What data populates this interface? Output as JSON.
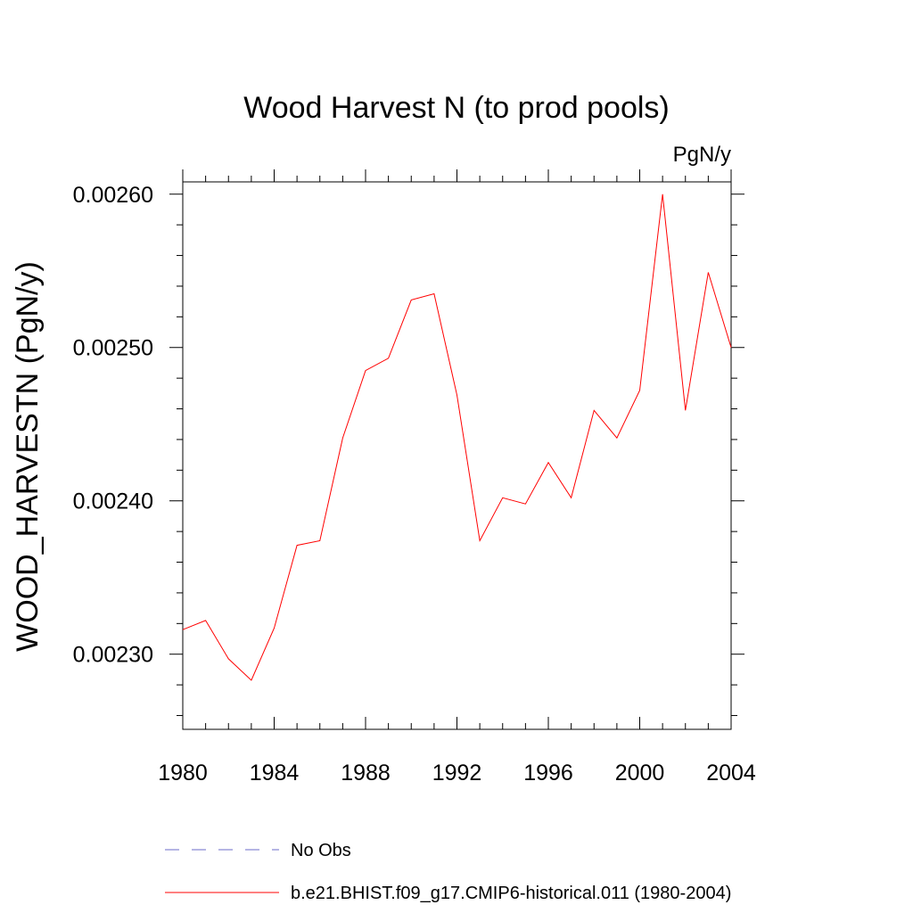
{
  "chart_data": {
    "type": "line",
    "title": "Wood Harvest N (to prod pools)",
    "units_label": "PgN/y",
    "ylabel": "WOOD_HARVESTN  (PgN/y)",
    "xlabel": "",
    "xlim": [
      1980,
      2004
    ],
    "ylim": [
      0.002251,
      0.002608
    ],
    "x_ticks": [
      1980,
      1984,
      1988,
      1992,
      1996,
      2000,
      2004
    ],
    "x_tick_labels": [
      "1980",
      "1984",
      "1988",
      "1992",
      "1996",
      "2000",
      "2004"
    ],
    "y_ticks": [
      0.0023,
      0.0024,
      0.0025,
      0.0026
    ],
    "y_tick_labels": [
      "0.00230",
      "0.00240",
      "0.00250",
      "0.00260"
    ],
    "grid": false,
    "legend_position": "bottom",
    "series": [
      {
        "name": "No Obs",
        "color": "#6b6bc8",
        "dash": "dashed",
        "x": [],
        "y": []
      },
      {
        "name": "b.e21.BHIST.f09_g17.CMIP6-historical.011 (1980-2004)",
        "color": "#ff0000",
        "dash": "solid",
        "x": [
          1980,
          1981,
          1982,
          1983,
          1984,
          1985,
          1986,
          1987,
          1988,
          1989,
          1990,
          1991,
          1992,
          1993,
          1994,
          1995,
          1996,
          1997,
          1998,
          1999,
          2000,
          2001,
          2002,
          2003,
          2004
        ],
        "y": [
          0.002316,
          0.002322,
          0.002297,
          0.002283,
          0.002317,
          0.002371,
          0.002374,
          0.002441,
          0.002485,
          0.002493,
          0.002531,
          0.002535,
          0.002469,
          0.002374,
          0.002402,
          0.002398,
          0.002425,
          0.002402,
          0.002459,
          0.002441,
          0.002472,
          0.0026,
          0.002459,
          0.002549,
          0.0025
        ]
      }
    ]
  }
}
